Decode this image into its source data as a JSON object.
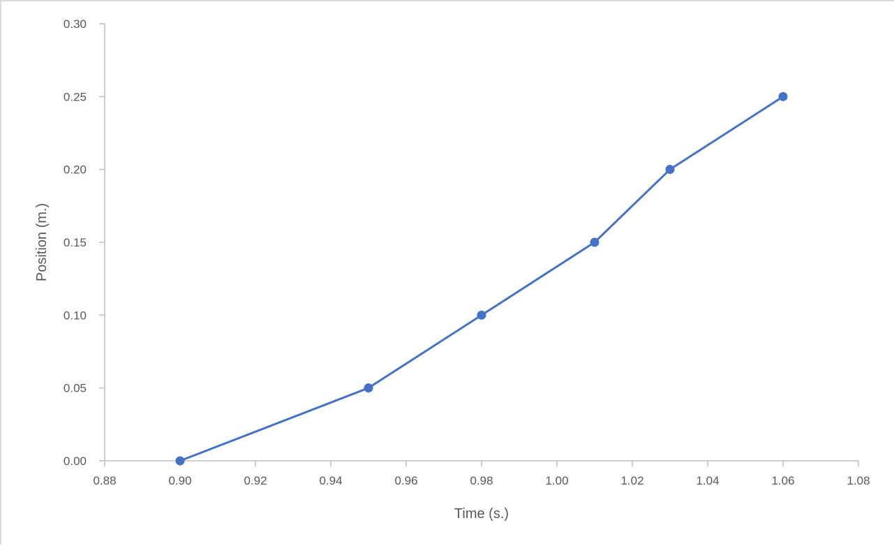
{
  "chart_data": {
    "type": "line",
    "title": "",
    "xlabel": "Time (s.)",
    "ylabel": "Position (m.)",
    "xlim": [
      0.88,
      1.08
    ],
    "ylim": [
      0.0,
      0.3
    ],
    "grid": false,
    "legend": null,
    "x_ticks": [
      "0.88",
      "0.90",
      "0.92",
      "0.94",
      "0.96",
      "0.98",
      "1.00",
      "1.02",
      "1.04",
      "1.06",
      "1.08"
    ],
    "y_ticks": [
      "0.00",
      "0.05",
      "0.10",
      "0.15",
      "0.20",
      "0.25",
      "0.30"
    ],
    "series": [
      {
        "name": "Position",
        "color": "#4472c4",
        "marker": "circle",
        "x": [
          0.9,
          0.95,
          0.98,
          1.01,
          1.03,
          1.06
        ],
        "y": [
          0.0,
          0.05,
          0.1,
          0.15,
          0.2,
          0.25
        ]
      }
    ]
  },
  "axes": {
    "x_title": "Time (s.)",
    "y_title": "Position (m.)",
    "axis_color": "#bfbfbf",
    "label_color": "#595959"
  }
}
